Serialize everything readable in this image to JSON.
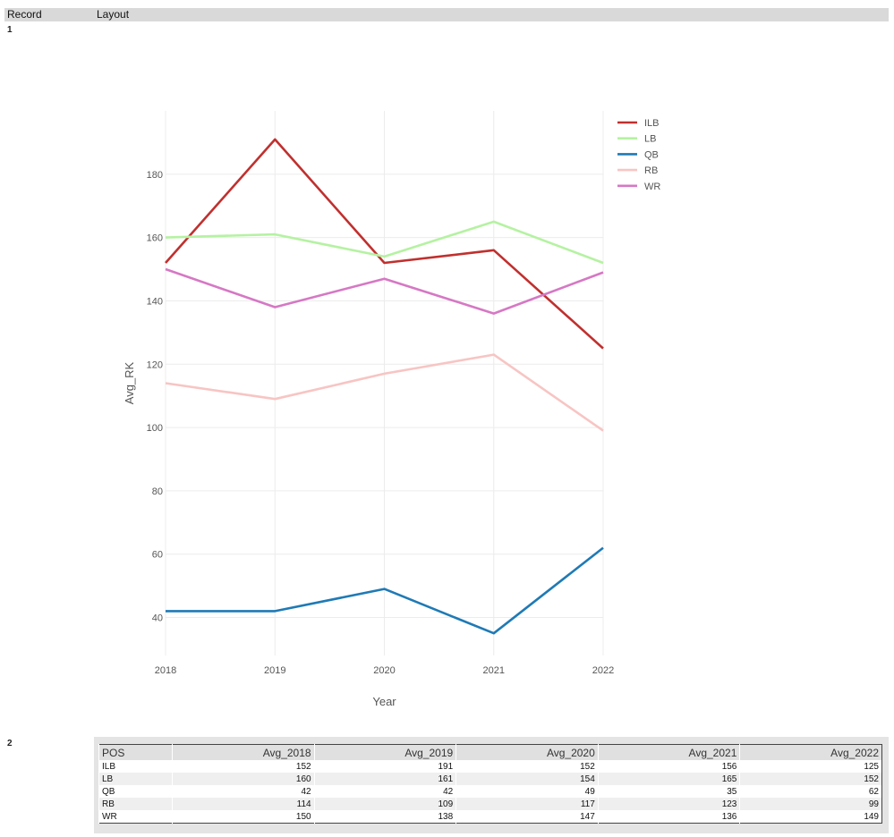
{
  "header": {
    "col1": "Record",
    "col2": "Layout"
  },
  "records": {
    "first": "1",
    "second": "2"
  },
  "chart_data": {
    "type": "line",
    "title": "",
    "xlabel": "Year",
    "ylabel": "Avg_RK",
    "x": [
      "2018",
      "2019",
      "2020",
      "2021",
      "2022"
    ],
    "ylim": [
      28,
      200
    ],
    "yticks": [
      "40",
      "60",
      "80",
      "100",
      "120",
      "140",
      "160",
      "180"
    ],
    "grid": true,
    "legend_position": "top-right",
    "series": [
      {
        "name": "ILB",
        "color": "#c0302e",
        "values": [
          152,
          191,
          152,
          156,
          125
        ]
      },
      {
        "name": "LB",
        "color": "#b5f2a2",
        "values": [
          160,
          161,
          154,
          165,
          152
        ]
      },
      {
        "name": "QB",
        "color": "#1f7ab5",
        "values": [
          42,
          42,
          49,
          35,
          62
        ]
      },
      {
        "name": "RB",
        "color": "#f7c5c3",
        "values": [
          114,
          109,
          117,
          123,
          99
        ]
      },
      {
        "name": "WR",
        "color": "#d678c4",
        "values": [
          150,
          138,
          147,
          136,
          149
        ]
      }
    ]
  },
  "table": {
    "columns": [
      "POS",
      "Avg_2018",
      "Avg_2019",
      "Avg_2020",
      "Avg_2021",
      "Avg_2022"
    ],
    "rows": [
      [
        "ILB",
        "152",
        "191",
        "152",
        "156",
        "125"
      ],
      [
        "LB",
        "160",
        "161",
        "154",
        "165",
        "152"
      ],
      [
        "QB",
        "42",
        "42",
        "49",
        "35",
        "62"
      ],
      [
        "RB",
        "114",
        "109",
        "117",
        "123",
        "99"
      ],
      [
        "WR",
        "150",
        "138",
        "147",
        "136",
        "149"
      ]
    ]
  }
}
